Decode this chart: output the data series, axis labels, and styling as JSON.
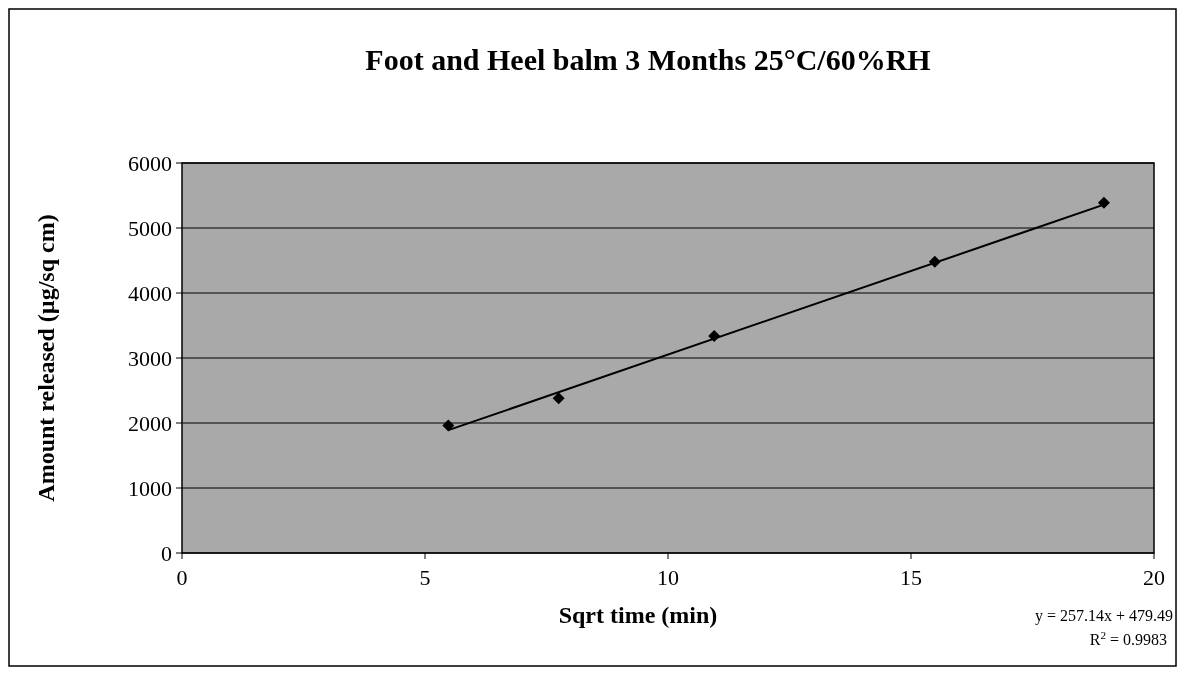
{
  "chart_data": {
    "type": "scatter",
    "title": "Foot and Heel balm 3 Months 25°C/60%RH",
    "xlabel": "Sqrt time (min)",
    "ylabel": "Amount released (µg/sq cm)",
    "series": [
      {
        "color": "#000000",
        "marker": "diamond",
        "x": [
          5.48,
          7.75,
          10.95,
          15.49,
          18.97
        ],
        "values": [
          1960,
          2380,
          3340,
          4480,
          5390
        ]
      },
      {
        "type": "line",
        "color": "#000000",
        "marker": "none",
        "x": [
          5.48,
          18.97
        ],
        "values": [
          1890,
          5360
        ]
      }
    ],
    "xlim": [
      0,
      20
    ],
    "xticks": [
      0,
      5,
      10,
      15,
      20
    ],
    "ylim": [
      0,
      6000
    ],
    "yticks": [
      0,
      1000,
      2000,
      3000,
      4000,
      5000,
      6000
    ],
    "grid": "y",
    "line_style": "solid",
    "annotations": [
      "y = 257.14x + 479.49",
      "R$^{2}$ = 0.9983"
    ]
  }
}
